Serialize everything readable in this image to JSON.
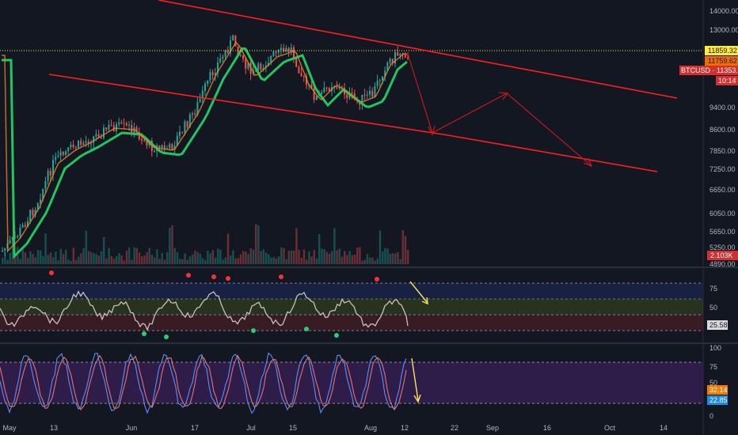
{
  "colors": {
    "background": "#131722",
    "up_candle": "#26a69a",
    "down_candle": "#ef5350",
    "ma_fast": "#e6862b",
    "ma_slow": "#22c55e",
    "channel": "#ff1f1f",
    "projection": "#d11a1a",
    "rsi_line": "#c8c0bd",
    "stoch_k": "#5b8ff9",
    "stoch_d": "#e57373",
    "annotation_arrow": "#f5e663",
    "last_price_line": "#ffeb3b"
  },
  "chart_data": [
    {
      "type": "candlestick",
      "symbol": "BTCUSD",
      "x_ticks": [
        "May",
        "13",
        "Jun",
        "17",
        "Jul",
        "15",
        "Aug",
        "12",
        "22",
        "Sep",
        "16",
        "Oct",
        "14"
      ],
      "y_ticks": [
        14000.0,
        13000.0,
        11600.0,
        10200.0,
        9400.0,
        8600.0,
        7850.0,
        7250.0,
        6650.0,
        6050.0,
        5650.0,
        5250.0,
        4890.0
      ],
      "y_scale": "log",
      "ylim": [
        4700,
        15000
      ],
      "closes_approx": [
        {
          "date": "May 1",
          "value": 5300
        },
        {
          "date": "May 13",
          "value": 7300
        },
        {
          "date": "May 20",
          "value": 8000
        },
        {
          "date": "Jun 1",
          "value": 8600
        },
        {
          "date": "Jun 10",
          "value": 7700
        },
        {
          "date": "Jun 17",
          "value": 9300
        },
        {
          "date": "Jun 26",
          "value": 13000
        },
        {
          "date": "Jul 10",
          "value": 12000
        },
        {
          "date": "Jul 17",
          "value": 9500
        },
        {
          "date": "Aug 1",
          "value": 10200
        },
        {
          "date": "Aug 8",
          "value": 11800
        }
      ],
      "price_labels": [
        {
          "text": "11859.32",
          "color": "#ffeb3b",
          "text_color": "#131722"
        },
        {
          "text": "11759.62",
          "color": "#ef6c00",
          "text_color": "#131722"
        },
        {
          "text": "BTCUSD · 11353.13",
          "color": "#d32f2f",
          "text_color": "#ffffff"
        },
        {
          "text": "10:14",
          "color": "#d32f2f",
          "text_color": "#ffffff"
        },
        {
          "text": "2.103K",
          "color": "#d32f2f",
          "text_color": "#ffffff"
        }
      ],
      "volume_label": "2.103K",
      "annotations": "descending channel with projected drop to lower trendline, bounce, then lower target"
    },
    {
      "type": "line",
      "name": "RSI",
      "y_ticks": [
        75.0,
        50.0,
        25.58
      ],
      "ylim": [
        0,
        100
      ],
      "last_value": "25.58",
      "bands": [
        30,
        50,
        70
      ]
    },
    {
      "type": "line",
      "name": "Stochastic RSI",
      "y_ticks": [
        100.0,
        75.0,
        50.0,
        0.0
      ],
      "ylim": [
        0,
        100
      ],
      "last_values": [
        "32.14",
        "22.85"
      ],
      "bands": [
        20,
        80
      ]
    }
  ]
}
